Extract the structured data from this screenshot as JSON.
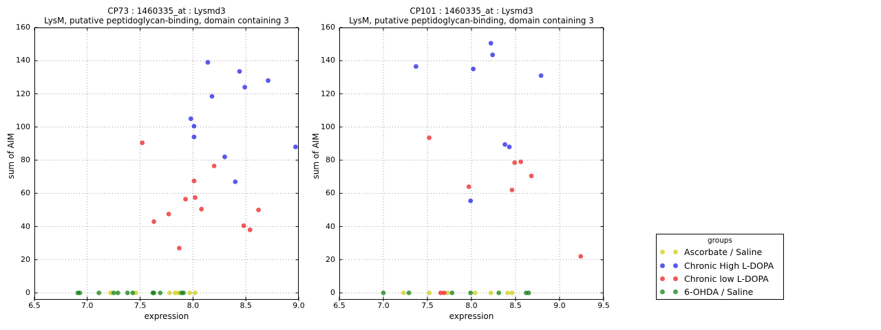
{
  "figure": {
    "background": "#ffffff"
  },
  "legend": {
    "title": "groups",
    "entries": [
      {
        "label": "Ascorbate / Saline",
        "color": "#cdcd14"
      },
      {
        "label": "Chronic High L-DOPA",
        "color": "#1919e6"
      },
      {
        "label": "Chronic low L-DOPA",
        "color": "#eb1919"
      },
      {
        "label": "6-OHDA / Saline",
        "color": "#0a7d0a"
      }
    ]
  },
  "chart_data": [
    {
      "type": "scatter",
      "title": "CP73 : 1460335_at : Lysmd3",
      "subtitle": "LysM, putative peptidoglycan-binding, domain containing 3",
      "xlabel": "expression",
      "ylabel": "sum of AIM",
      "xlim": [
        6.5,
        9.0
      ],
      "ylim": [
        0,
        160
      ],
      "xticks": [
        "6.5",
        "7.0",
        "7.5",
        "8.0",
        "8.5",
        "9.0"
      ],
      "yticks": [
        "0",
        "20",
        "40",
        "60",
        "80",
        "100",
        "120",
        "140",
        "160"
      ],
      "grid": true,
      "legend_position": "outside-right",
      "series": [
        {
          "name": "Ascorbate / Saline",
          "color": "#cdcd14",
          "points": [
            [
              7.22,
              0
            ],
            [
              7.46,
              0
            ],
            [
              7.78,
              0
            ],
            [
              7.83,
              0
            ],
            [
              7.86,
              0
            ],
            [
              7.97,
              0
            ],
            [
              8.02,
              0
            ]
          ]
        },
        {
          "name": "Chronic High L-DOPA",
          "color": "#1919e6",
          "points": [
            [
              8.14,
              139
            ],
            [
              8.44,
              133.5
            ],
            [
              8.71,
              128
            ],
            [
              8.49,
              124
            ],
            [
              8.18,
              118.5
            ],
            [
              7.98,
              105
            ],
            [
              8.01,
              100.5
            ],
            [
              8.01,
              94
            ],
            [
              8.3,
              82
            ],
            [
              8.4,
              67
            ],
            [
              8.97,
              88
            ]
          ]
        },
        {
          "name": "Chronic low L-DOPA",
          "color": "#eb1919",
          "points": [
            [
              7.52,
              90.5
            ],
            [
              8.2,
              76.5
            ],
            [
              8.01,
              67.5
            ],
            [
              7.93,
              56.5
            ],
            [
              8.02,
              57.5
            ],
            [
              8.08,
              50.5
            ],
            [
              7.77,
              47.5
            ],
            [
              7.63,
              43
            ],
            [
              8.62,
              50
            ],
            [
              8.48,
              40.5
            ],
            [
              8.54,
              38
            ],
            [
              7.87,
              27
            ]
          ]
        },
        {
          "name": "6-OHDA / Saline",
          "color": "#0a7d0a",
          "points": [
            [
              6.91,
              0
            ],
            [
              6.93,
              0
            ],
            [
              7.11,
              0
            ],
            [
              7.25,
              0
            ],
            [
              7.29,
              0
            ],
            [
              7.38,
              0
            ],
            [
              7.43,
              0
            ],
            [
              7.62,
              0
            ],
            [
              7.63,
              0
            ],
            [
              7.69,
              0
            ],
            [
              7.89,
              0
            ],
            [
              7.91,
              0
            ]
          ]
        }
      ]
    },
    {
      "type": "scatter",
      "title": "CP101 : 1460335_at : Lysmd3",
      "subtitle": "LysM, putative peptidoglycan-binding, domain containing 3",
      "xlabel": "expression",
      "ylabel": "sum of AIM",
      "xlim": [
        6.5,
        9.5
      ],
      "ylim": [
        0,
        160
      ],
      "xticks": [
        "6.5",
        "7.0",
        "7.5",
        "8.0",
        "8.5",
        "9.0",
        "9.5"
      ],
      "yticks": [
        "0",
        "20",
        "40",
        "60",
        "80",
        "100",
        "120",
        "140",
        "160"
      ],
      "grid": true,
      "legend_position": "outside-right",
      "series": [
        {
          "name": "Ascorbate / Saline",
          "color": "#cdcd14",
          "points": [
            [
              7.23,
              0
            ],
            [
              7.52,
              0
            ],
            [
              7.73,
              0
            ],
            [
              8.04,
              0
            ],
            [
              8.22,
              0
            ],
            [
              8.41,
              0
            ],
            [
              8.46,
              0
            ]
          ]
        },
        {
          "name": "Chronic High L-DOPA",
          "color": "#1919e6",
          "points": [
            [
              8.22,
              150.5
            ],
            [
              8.24,
              143.5
            ],
            [
              7.37,
              136.5
            ],
            [
              8.02,
              135
            ],
            [
              8.79,
              131
            ],
            [
              8.38,
              89.5
            ],
            [
              8.43,
              88
            ],
            [
              7.99,
              55.5
            ]
          ]
        },
        {
          "name": "Chronic low L-DOPA",
          "color": "#eb1919",
          "points": [
            [
              7.52,
              93.5
            ],
            [
              8.49,
              78.5
            ],
            [
              8.56,
              79
            ],
            [
              8.68,
              70.5
            ],
            [
              7.97,
              64
            ],
            [
              8.46,
              62
            ],
            [
              9.24,
              22
            ],
            [
              7.65,
              0
            ],
            [
              7.69,
              0
            ]
          ]
        },
        {
          "name": "6-OHDA / Saline",
          "color": "#0a7d0a",
          "points": [
            [
              7.0,
              0
            ],
            [
              7.29,
              0
            ],
            [
              7.78,
              0
            ],
            [
              7.99,
              0
            ],
            [
              8.31,
              0
            ],
            [
              8.62,
              0
            ],
            [
              8.65,
              0
            ]
          ]
        }
      ]
    }
  ]
}
